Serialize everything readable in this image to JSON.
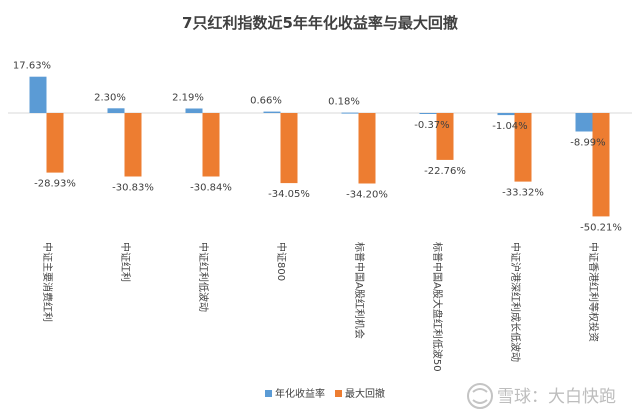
{
  "chart_data": {
    "type": "bar",
    "title": "7只红利指数近5年年化收益率与最大回撤",
    "categories": [
      "中证主要消费红利",
      "中证红利",
      "中证红利低波动",
      "中证800",
      "标普中国A股红利机会",
      "标普中国A股大盘红利低波50",
      "中证沪港深红利成长低波动",
      "中证香港红利等权投资"
    ],
    "series": [
      {
        "name": "年化收益率",
        "color": "#5b9bd5",
        "values": [
          17.63,
          2.3,
          2.19,
          0.66,
          0.18,
          -0.37,
          -1.04,
          -8.99
        ],
        "labels": [
          "17.63%",
          "2.30%",
          "2.19%",
          "0.66%",
          "0.18%",
          "-0.37%",
          "-1.04%",
          "-8.99%"
        ]
      },
      {
        "name": "最大回撤",
        "color": "#ed7d31",
        "values": [
          -28.93,
          -30.83,
          -30.84,
          -34.05,
          -34.2,
          -22.76,
          -33.32,
          -50.21
        ],
        "labels": [
          "-28.93%",
          "-30.83%",
          "-30.84%",
          "-34.05%",
          "-34.20%",
          "-22.76%",
          "-33.32%",
          "-50.21%"
        ]
      }
    ],
    "xlabel": "",
    "ylabel": "",
    "ylim": [
      -52,
      20
    ],
    "grid": false,
    "legend": "bottom-center"
  },
  "watermark": {
    "text": "雪球：大白快跑"
  }
}
